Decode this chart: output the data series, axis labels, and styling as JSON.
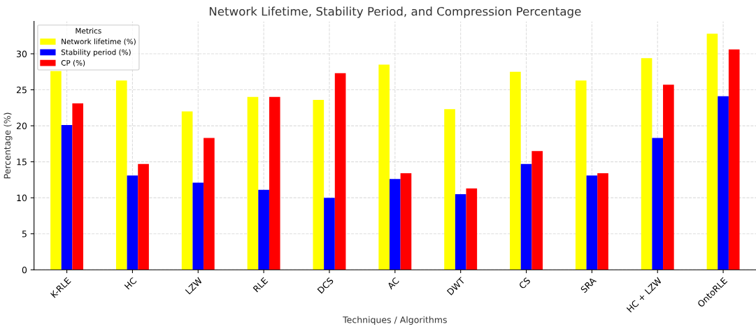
{
  "chart_data": {
    "type": "bar",
    "title": "Network Lifetime, Stability Period, and Compression Percentage",
    "xlabel": "Techniques / Algorithms",
    "ylabel": "Percentage (%)",
    "legend_title": "Metrics",
    "categories": [
      "K-RLE",
      "HC",
      "LZW",
      "RLE",
      "DCS",
      "AC",
      "DWT",
      "CS",
      "SRA",
      "HC + LZW",
      "OntoRLE"
    ],
    "series": [
      {
        "name": "Network lifetime (%)",
        "color": "#ffff00",
        "values": [
          27.6,
          26.3,
          22.0,
          24.0,
          23.6,
          28.5,
          22.3,
          27.5,
          26.3,
          29.4,
          32.8
        ]
      },
      {
        "name": "Stability period (%)",
        "color": "#0000ff",
        "values": [
          20.1,
          13.1,
          12.1,
          11.1,
          10.0,
          12.6,
          10.5,
          14.7,
          13.1,
          18.3,
          24.1
        ]
      },
      {
        "name": "CP (%)",
        "color": "#ff0000",
        "values": [
          23.1,
          14.7,
          18.3,
          24.0,
          27.3,
          13.4,
          11.3,
          16.5,
          13.4,
          25.7,
          30.6
        ]
      }
    ],
    "ylim": [
      0,
      34.5
    ],
    "yticks": [
      0,
      5,
      10,
      15,
      20,
      25,
      30
    ],
    "grid": true,
    "legend": "top left"
  }
}
